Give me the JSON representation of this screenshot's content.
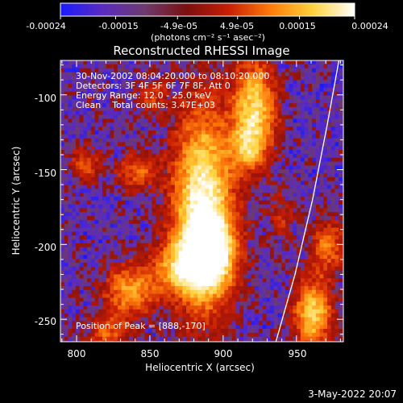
{
  "colorbar": {
    "tick_labels": [
      "-0.00024",
      "-0.00015",
      "-4.9e-05",
      "4.9e-05",
      "0.00015",
      "0.00024"
    ],
    "unit_label": "(photons cm⁻² s⁻¹ asec⁻²)",
    "range": [
      -0.00024,
      0.00024
    ],
    "colormap": [
      "#1a1aff",
      "#5a2bc0",
      "#6e3a6e",
      "#7a0f0f",
      "#c81e05",
      "#ff7a0a",
      "#ffd23c",
      "#ffffff"
    ]
  },
  "chart_data": {
    "type": "heatmap",
    "title": "Reconstructed RHESSI Image",
    "xlabel": "Heliocentric X (arcsec)",
    "ylabel": "Heliocentric Y (arcsec)",
    "xlim": [
      789,
      982
    ],
    "ylim": [
      -265,
      -77
    ],
    "xticks": [
      800,
      850,
      900,
      950
    ],
    "yticks": [
      -100,
      -150,
      -200,
      -250
    ],
    "info_lines": [
      "30-Nov-2002 08:04:20.000 to 08:10:20.000",
      "Detectors: 3F 4F 5F 6F 7F 8F, Att 0",
      "Energy Range: 12.0 - 25.0 keV",
      "Clean    Total counts: 3.47E+03"
    ],
    "peak_label": "Position of Peak = [888,-170]",
    "peak": [
      888,
      -170
    ],
    "limb_curve": [
      [
        936,
        -265
      ],
      [
        949,
        -220
      ],
      [
        961,
        -170
      ],
      [
        971,
        -120
      ],
      [
        979,
        -77
      ]
    ],
    "sources": [
      {
        "x": 885,
        "y": -175,
        "sx": 14,
        "sy": 45,
        "a": 1.0
      },
      {
        "x": 890,
        "y": -205,
        "sx": 12,
        "sy": 16,
        "a": 0.7
      },
      {
        "x": 870,
        "y": -215,
        "sx": 14,
        "sy": 12,
        "a": 0.55
      },
      {
        "x": 920,
        "y": -108,
        "sx": 10,
        "sy": 22,
        "a": 0.8
      },
      {
        "x": 915,
        "y": -135,
        "sx": 8,
        "sy": 10,
        "a": 0.45
      },
      {
        "x": 960,
        "y": -245,
        "sx": 9,
        "sy": 16,
        "a": 0.75
      },
      {
        "x": 970,
        "y": -200,
        "sx": 8,
        "sy": 12,
        "a": 0.45
      },
      {
        "x": 835,
        "y": -230,
        "sx": 12,
        "sy": 12,
        "a": 0.6
      },
      {
        "x": 820,
        "y": -258,
        "sx": 10,
        "sy": 8,
        "a": 0.4
      },
      {
        "x": 840,
        "y": -150,
        "sx": 9,
        "sy": 8,
        "a": 0.45
      },
      {
        "x": 805,
        "y": -145,
        "sx": 7,
        "sy": 8,
        "a": 0.35
      },
      {
        "x": 850,
        "y": -100,
        "sx": 8,
        "sy": 8,
        "a": 0.3
      },
      {
        "x": 938,
        "y": -180,
        "sx": 6,
        "sy": 10,
        "a": 0.25
      }
    ]
  },
  "footer": {
    "date": "3-May-2022 20:07"
  }
}
